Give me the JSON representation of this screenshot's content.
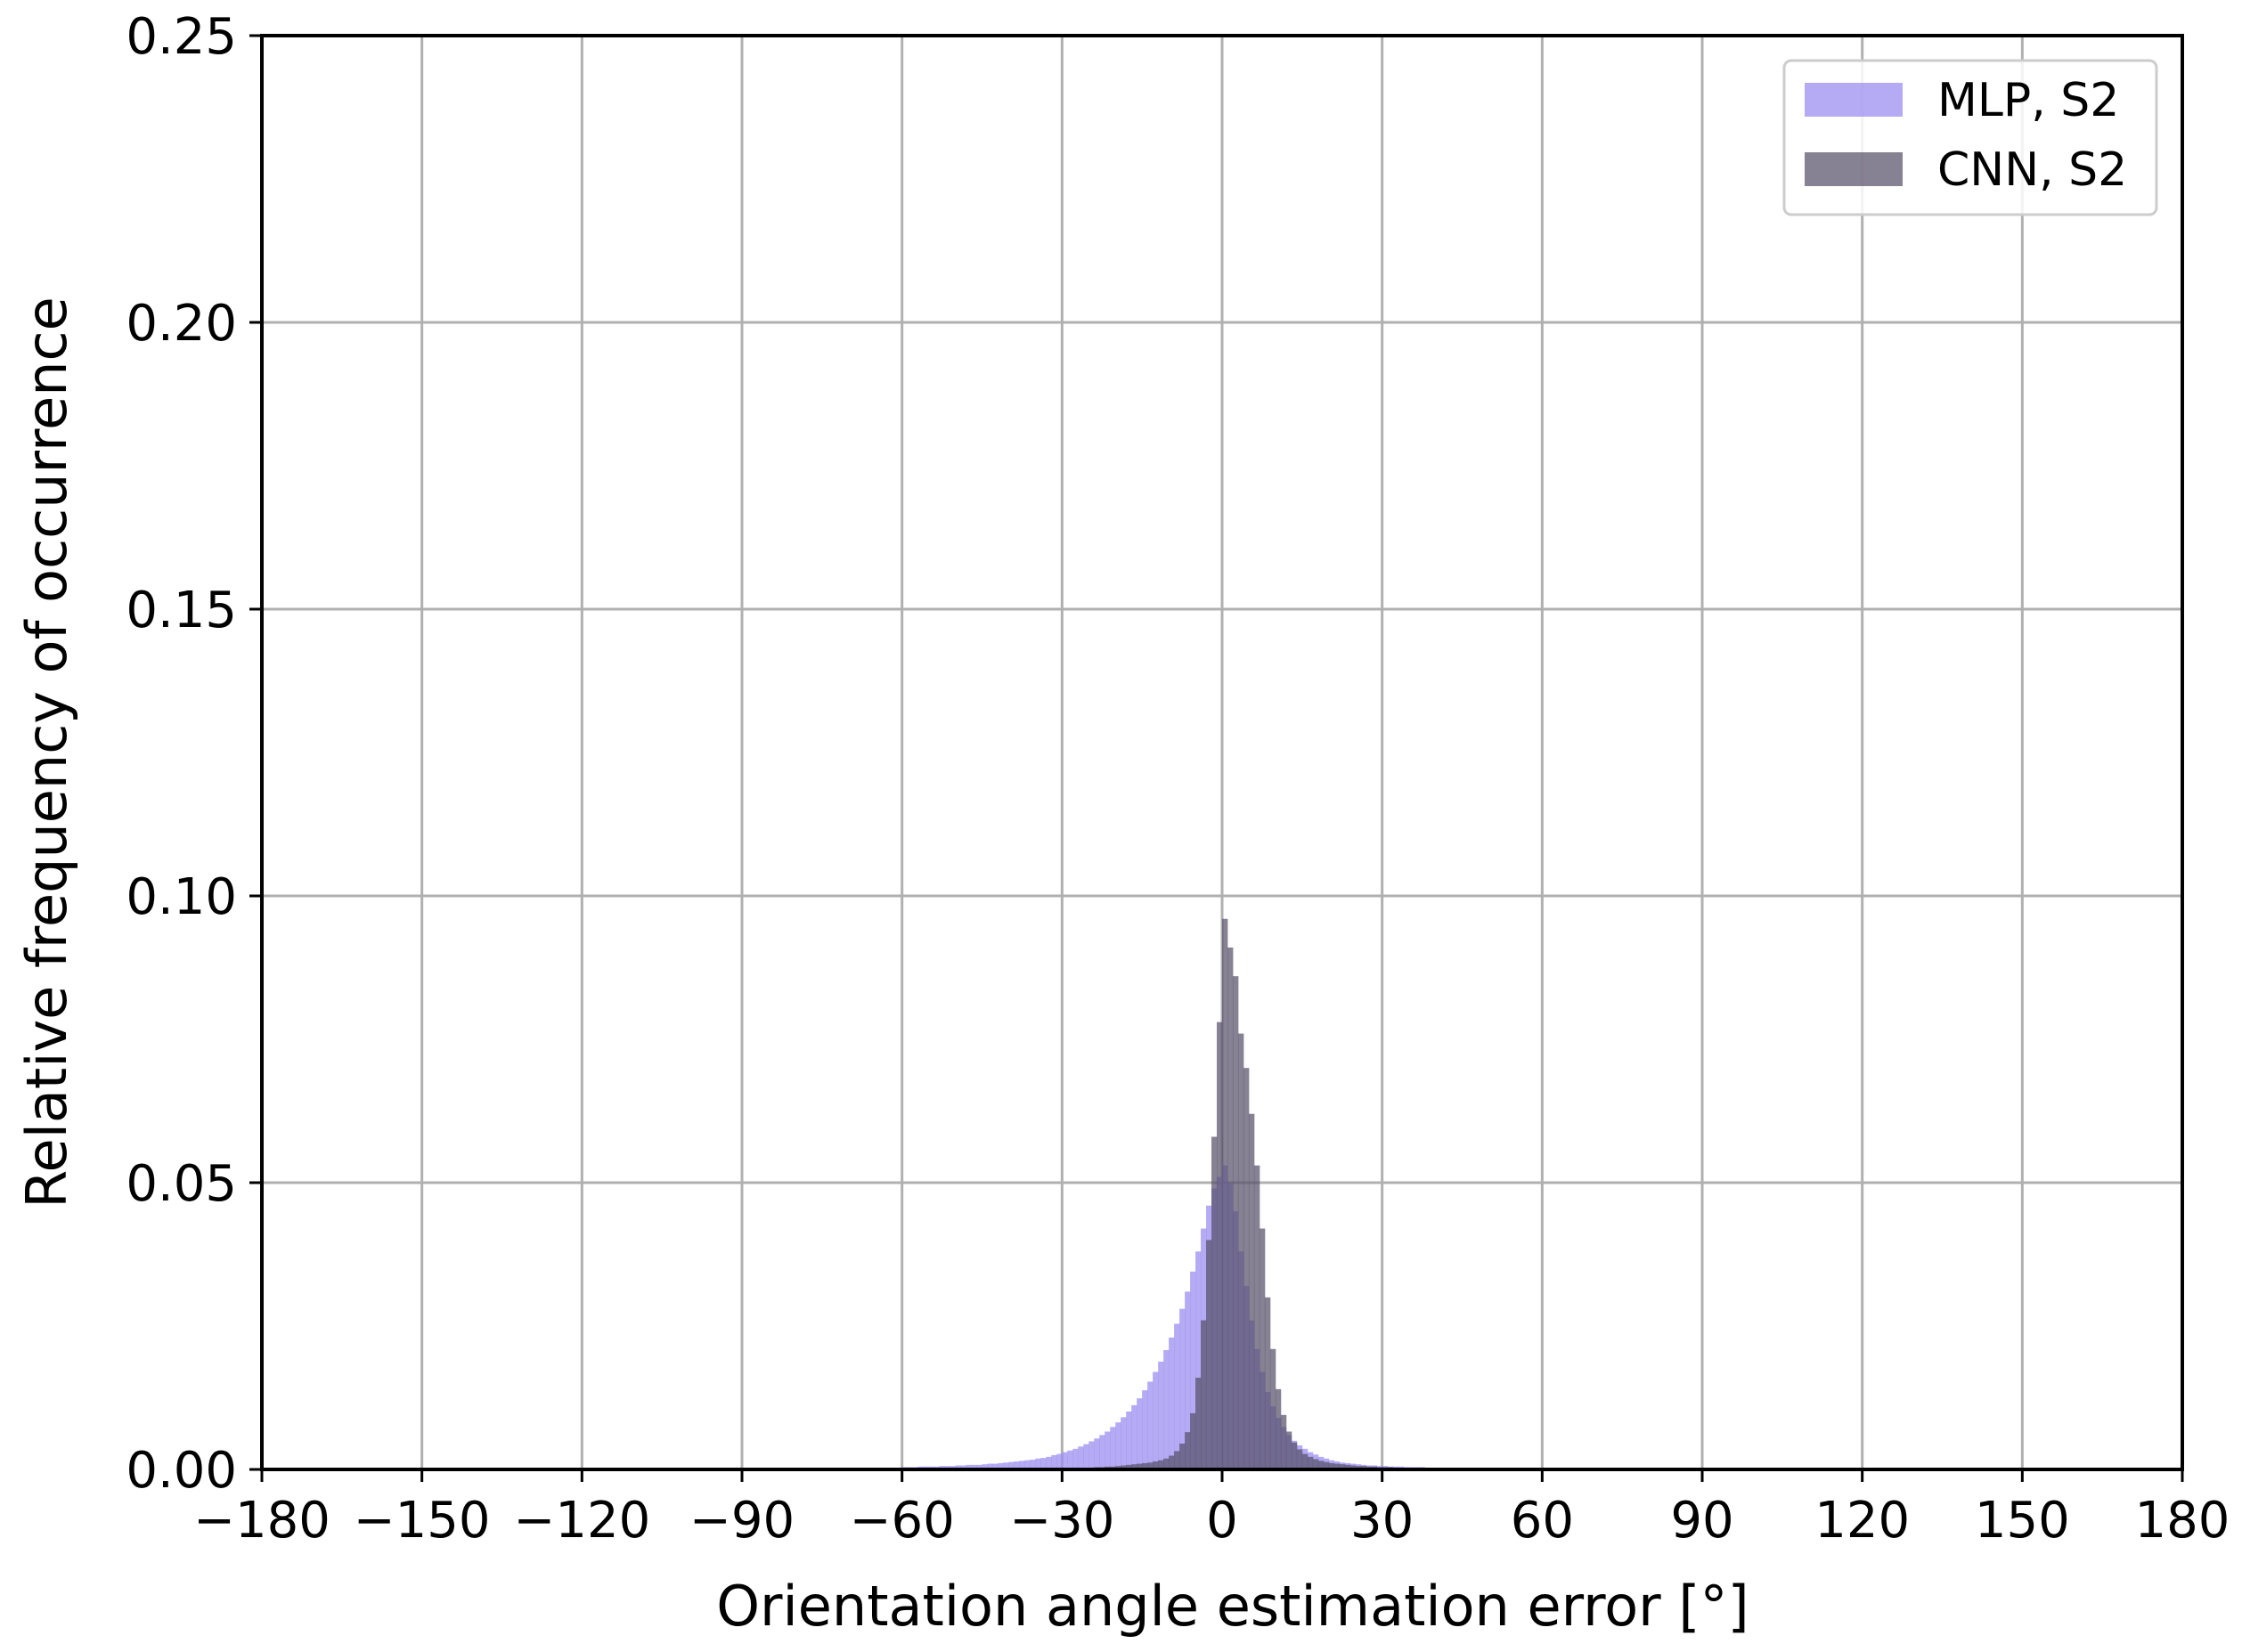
{
  "chart_data": {
    "type": "histogram",
    "title": "",
    "xlabel": "Orientation angle estimation error [°]",
    "ylabel": "Relative frequency of occurrence",
    "xlim": [
      -180,
      180
    ],
    "ylim": [
      0,
      0.25
    ],
    "x_ticks": [
      -180,
      -150,
      -120,
      -90,
      -60,
      -30,
      0,
      30,
      60,
      90,
      120,
      150,
      180
    ],
    "x_tick_labels": [
      "−180",
      "−150",
      "−120",
      "−90",
      "−60",
      "−30",
      "0",
      "30",
      "60",
      "90",
      "120",
      "150",
      "180"
    ],
    "y_ticks": [
      0,
      0.05,
      0.1,
      0.15,
      0.2,
      0.25
    ],
    "y_tick_labels": [
      "0.00",
      "0.05",
      "0.10",
      "0.15",
      "0.20",
      "0.25"
    ],
    "grid": true,
    "legend_position": "top-right",
    "bin_width": 1,
    "series": [
      {
        "name": "MLP, S2",
        "color": "#9b8ff0",
        "x": [
          -60,
          -59,
          -58,
          -57,
          -56,
          -55,
          -54,
          -53,
          -52,
          -51,
          -50,
          -49,
          -48,
          -47,
          -46,
          -45,
          -44,
          -43,
          -42,
          -41,
          -40,
          -39,
          -38,
          -37,
          -36,
          -35,
          -34,
          -33,
          -32,
          -31,
          -30,
          -29,
          -28,
          -27,
          -26,
          -25,
          -24,
          -23,
          -22,
          -21,
          -20,
          -19,
          -18,
          -17,
          -16,
          -15,
          -14,
          -13,
          -12,
          -11,
          -10,
          -9,
          -8,
          -7,
          -6,
          -5,
          -4,
          -3,
          -2,
          -1,
          0,
          1,
          2,
          3,
          4,
          5,
          6,
          7,
          8,
          9,
          10,
          11,
          12,
          13,
          14,
          15,
          16,
          17,
          18,
          19,
          20,
          21,
          22,
          23,
          24,
          25,
          26,
          27,
          28,
          29,
          30,
          31,
          32,
          33,
          34,
          35,
          36,
          37,
          38,
          39,
          40,
          41,
          42,
          43,
          44,
          45,
          46,
          47,
          48,
          49,
          50,
          51,
          52,
          53,
          54,
          55
        ],
        "values": [
          0.0004,
          0.0004,
          0.0004,
          0.0005,
          0.0005,
          0.0005,
          0.0005,
          0.0006,
          0.0006,
          0.0006,
          0.0007,
          0.0007,
          0.0008,
          0.0008,
          0.0008,
          0.0009,
          0.001,
          0.001,
          0.0011,
          0.0012,
          0.0013,
          0.0014,
          0.0015,
          0.0016,
          0.0017,
          0.0019,
          0.002,
          0.0022,
          0.0025,
          0.0027,
          0.003,
          0.0033,
          0.0036,
          0.004,
          0.0044,
          0.0049,
          0.0054,
          0.006,
          0.0066,
          0.0074,
          0.0082,
          0.0091,
          0.0101,
          0.0112,
          0.0124,
          0.0138,
          0.0153,
          0.017,
          0.0188,
          0.0208,
          0.023,
          0.0254,
          0.028,
          0.031,
          0.0345,
          0.038,
          0.042,
          0.046,
          0.049,
          0.051,
          0.053,
          0.05,
          0.045,
          0.038,
          0.032,
          0.026,
          0.021,
          0.017,
          0.0135,
          0.011,
          0.009,
          0.0074,
          0.006,
          0.005,
          0.0042,
          0.0036,
          0.003,
          0.0026,
          0.0022,
          0.0019,
          0.0016,
          0.0014,
          0.0012,
          0.0011,
          0.001,
          0.0009,
          0.0008,
          0.0007,
          0.0007,
          0.0006,
          0.0006,
          0.0005,
          0.0005,
          0.0005,
          0.0004,
          0.0004,
          0.0004,
          0.0004,
          0.0003,
          0.0003,
          0.0003,
          0.0003,
          0.0003,
          0.0003,
          0.0002,
          0.0002,
          0.0002,
          0.0002,
          0.0002,
          0.0002,
          0.0002,
          0.0002,
          0.0002,
          0.0002,
          0.0002,
          0.0002
        ]
      },
      {
        "name": "CNN, S2",
        "color": "#57516a",
        "x": [
          -40,
          -39,
          -38,
          -37,
          -36,
          -35,
          -34,
          -33,
          -32,
          -31,
          -30,
          -29,
          -28,
          -27,
          -26,
          -25,
          -24,
          -23,
          -22,
          -21,
          -20,
          -19,
          -18,
          -17,
          -16,
          -15,
          -14,
          -13,
          -12,
          -11,
          -10,
          -9,
          -8,
          -7,
          -6,
          -5,
          -4,
          -3,
          -2,
          -1,
          0,
          1,
          2,
          3,
          4,
          5,
          6,
          7,
          8,
          9,
          10,
          11,
          12,
          13,
          14,
          15,
          16,
          17,
          18,
          19,
          20,
          21,
          22,
          23,
          24,
          25,
          26,
          27,
          28,
          29,
          30,
          31,
          32,
          33,
          34,
          35,
          36,
          37,
          38,
          39,
          40
        ],
        "values": [
          0.0001,
          0.0001,
          0.0001,
          0.0001,
          0.0001,
          0.0001,
          0.0001,
          0.0001,
          0.0002,
          0.0002,
          0.0002,
          0.0002,
          0.0002,
          0.0003,
          0.0003,
          0.0003,
          0.0004,
          0.0004,
          0.0005,
          0.0005,
          0.0006,
          0.0007,
          0.0008,
          0.0009,
          0.001,
          0.0011,
          0.0012,
          0.0014,
          0.0016,
          0.0019,
          0.0024,
          0.0032,
          0.0045,
          0.0065,
          0.0098,
          0.016,
          0.026,
          0.04,
          0.058,
          0.078,
          0.096,
          0.091,
          0.086,
          0.076,
          0.07,
          0.062,
          0.053,
          0.042,
          0.03,
          0.021,
          0.014,
          0.0095,
          0.0066,
          0.0047,
          0.0035,
          0.0027,
          0.0022,
          0.0018,
          0.0015,
          0.0013,
          0.0011,
          0.001,
          0.0009,
          0.0008,
          0.0007,
          0.0006,
          0.0006,
          0.0005,
          0.0005,
          0.0004,
          0.0004,
          0.0004,
          0.0003,
          0.0003,
          0.0003,
          0.0003,
          0.0002,
          0.0002,
          0.0002,
          0.0002,
          0.0002
        ]
      }
    ]
  }
}
